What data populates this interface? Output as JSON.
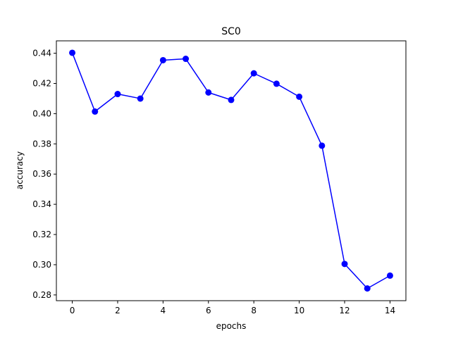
{
  "chart_data": {
    "type": "line",
    "title": "SC0",
    "xlabel": "epochs",
    "ylabel": "accuracy",
    "xlim": [
      -0.7,
      14.7
    ],
    "ylim": [
      0.2762,
      0.4482
    ],
    "xticks": [
      0,
      2,
      4,
      6,
      8,
      10,
      12,
      14
    ],
    "yticks": [
      0.28,
      0.3,
      0.32,
      0.34,
      0.36,
      0.38,
      0.4,
      0.42,
      0.44
    ],
    "ytick_labels": [
      "0.28",
      "0.30",
      "0.32",
      "0.34",
      "0.36",
      "0.38",
      "0.40",
      "0.42",
      "0.44"
    ],
    "grid": false,
    "series": [
      {
        "color": "#0000ff",
        "marker": "circle",
        "x": [
          0,
          1,
          2,
          3,
          4,
          5,
          6,
          7,
          8,
          9,
          10,
          11,
          12,
          13,
          14
        ],
        "y": [
          0.4403,
          0.4014,
          0.413,
          0.41,
          0.4354,
          0.4363,
          0.414,
          0.4091,
          0.4267,
          0.4198,
          0.4112,
          0.3788,
          0.3005,
          0.2843,
          0.2928
        ]
      }
    ]
  }
}
